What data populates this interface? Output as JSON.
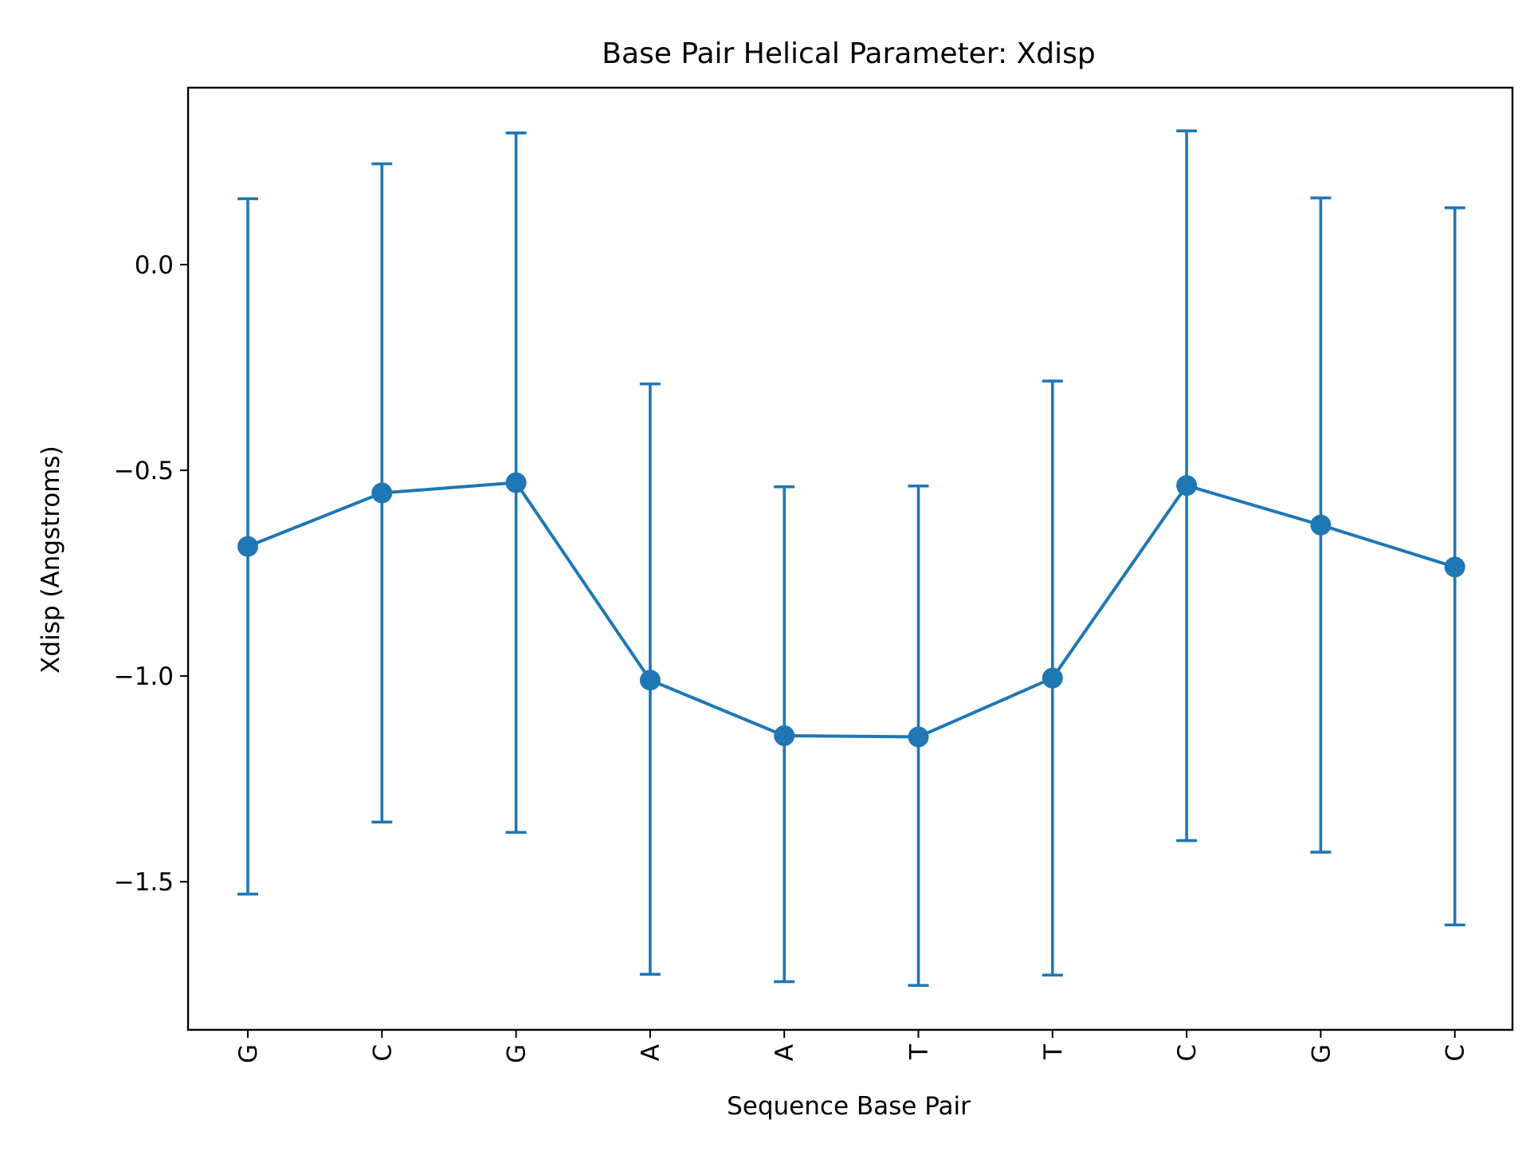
{
  "chart_data": {
    "type": "line",
    "title": "Base Pair  Helical Parameter: Xdisp",
    "xlabel": "Sequence Base Pair",
    "ylabel": "Xdisp (Angstroms)",
    "categories": [
      "G",
      "C",
      "G",
      "A",
      "A",
      "T",
      "T",
      "C",
      "G",
      "C"
    ],
    "series": [
      {
        "values": [
          -0.685,
          -0.555,
          -0.53,
          -1.01,
          -1.145,
          -1.148,
          -1.005,
          -0.537,
          -0.633,
          -0.735
        ],
        "error_low": [
          -1.53,
          -1.355,
          -1.38,
          -1.725,
          -1.743,
          -1.752,
          -1.727,
          -1.4,
          -1.428,
          -1.605
        ],
        "error_high": [
          0.16,
          0.245,
          0.32,
          -0.29,
          -0.54,
          -0.538,
          -0.283,
          0.325,
          0.162,
          0.138
        ],
        "color": "#1f77b4"
      }
    ],
    "yticks": [
      0.0,
      -0.5,
      -1.0,
      -1.5
    ],
    "ytick_labels": [
      "0.0",
      "−0.5",
      "−1.0",
      "−1.5"
    ],
    "ylim": [
      -1.86,
      0.43
    ],
    "grid": false,
    "marker": "circle",
    "error_bars": true
  }
}
